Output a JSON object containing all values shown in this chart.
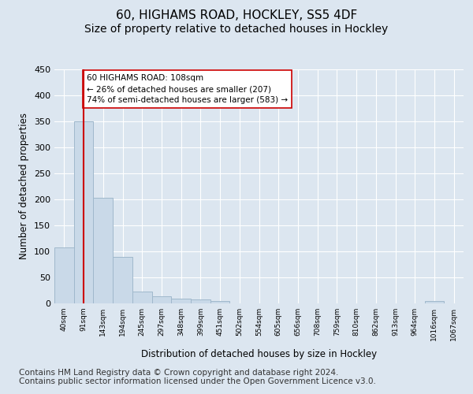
{
  "title_line1": "60, HIGHAMS ROAD, HOCKLEY, SS5 4DF",
  "title_line2": "Size of property relative to detached houses in Hockley",
  "xlabel": "Distribution of detached houses by size in Hockley",
  "ylabel": "Number of detached properties",
  "bar_labels": [
    "40sqm",
    "91sqm",
    "143sqm",
    "194sqm",
    "245sqm",
    "297sqm",
    "348sqm",
    "399sqm",
    "451sqm",
    "502sqm",
    "554sqm",
    "605sqm",
    "656sqm",
    "708sqm",
    "759sqm",
    "810sqm",
    "862sqm",
    "913sqm",
    "964sqm",
    "1016sqm",
    "1067sqm"
  ],
  "bar_values": [
    108,
    350,
    203,
    89,
    23,
    14,
    9,
    8,
    5,
    0,
    0,
    0,
    0,
    0,
    0,
    0,
    0,
    0,
    0,
    5,
    0
  ],
  "bar_color": "#c9d9e8",
  "bar_edgecolor": "#a0b8cc",
  "vline_x": 1,
  "vline_color": "#cc0000",
  "annotation_text": "60 HIGHAMS ROAD: 108sqm\n← 26% of detached houses are smaller (207)\n74% of semi-detached houses are larger (583) →",
  "annotation_box_edgecolor": "#cc0000",
  "annotation_box_facecolor": "#ffffff",
  "ylim": [
    0,
    450
  ],
  "yticks": [
    0,
    50,
    100,
    150,
    200,
    250,
    300,
    350,
    400,
    450
  ],
  "footer_text": "Contains HM Land Registry data © Crown copyright and database right 2024.\nContains public sector information licensed under the Open Government Licence v3.0.",
  "background_color": "#dce6f0",
  "plot_background_color": "#dce6f0",
  "grid_color": "#ffffff",
  "title_fontsize": 11,
  "subtitle_fontsize": 10,
  "label_fontsize": 8.5,
  "footer_fontsize": 7.5
}
